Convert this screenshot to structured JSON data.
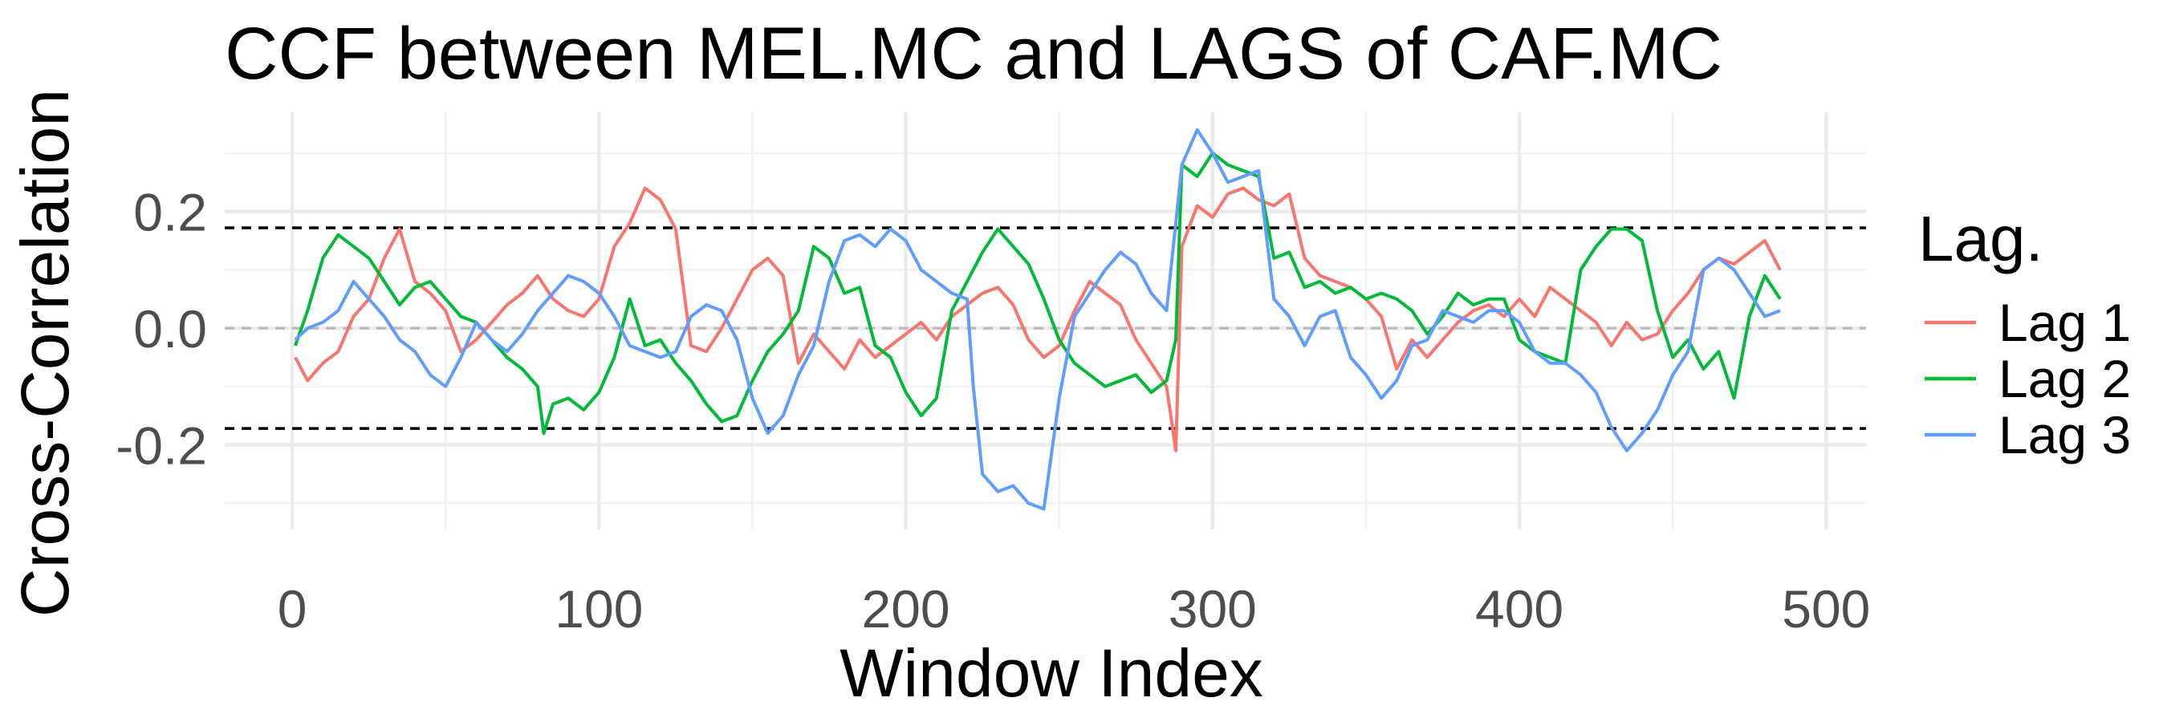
{
  "chart_data": {
    "type": "line",
    "title": "CCF between  MEL.MC and LAGS of CAF.MC",
    "xlabel": "Window Index",
    "ylabel": "Cross-Correlation",
    "xlim": [
      -22,
      513
    ],
    "ylim": [
      -0.345,
      0.37
    ],
    "x_ticks": [
      0,
      100,
      200,
      300,
      400,
      500
    ],
    "y_ticks": [
      -0.2,
      0.0,
      0.2
    ],
    "x_tick_labels": [
      "0",
      "100",
      "200",
      "300",
      "400",
      "500"
    ],
    "y_tick_labels": [
      "-0.2",
      "0.0",
      "0.2"
    ],
    "grid": true,
    "legend_position": "right",
    "legend_title": "Lag.",
    "reference_lines": [
      {
        "y": 0.172,
        "style": "dashed",
        "color": "#000000"
      },
      {
        "y": -0.172,
        "style": "dashed",
        "color": "#000000"
      },
      {
        "y": 0.0,
        "style": "dashed",
        "color": "#bebebe"
      }
    ],
    "series": [
      {
        "name": "Lag 1",
        "color": "#F8766D",
        "x": [
          1,
          5,
          10,
          15,
          20,
          25,
          30,
          35,
          40,
          45,
          50,
          55,
          60,
          65,
          70,
          75,
          80,
          85,
          90,
          95,
          100,
          105,
          110,
          115,
          120,
          125,
          130,
          135,
          140,
          145,
          150,
          155,
          160,
          165,
          170,
          175,
          180,
          185,
          190,
          195,
          200,
          205,
          210,
          215,
          220,
          225,
          230,
          235,
          240,
          245,
          250,
          255,
          260,
          265,
          270,
          275,
          280,
          285,
          288,
          290,
          295,
          300,
          305,
          310,
          315,
          320,
          325,
          330,
          335,
          340,
          345,
          350,
          355,
          360,
          365,
          370,
          375,
          380,
          385,
          390,
          395,
          400,
          405,
          410,
          415,
          420,
          425,
          430,
          435,
          440,
          445,
          450,
          455,
          460,
          465,
          470,
          475,
          480,
          485
        ],
        "y": [
          -0.05,
          -0.09,
          -0.06,
          -0.04,
          0.02,
          0.05,
          0.12,
          0.17,
          0.08,
          0.06,
          0.03,
          -0.04,
          -0.02,
          0.01,
          0.04,
          0.06,
          0.09,
          0.05,
          0.03,
          0.02,
          0.05,
          0.14,
          0.18,
          0.24,
          0.22,
          0.17,
          -0.03,
          -0.04,
          0.0,
          0.05,
          0.1,
          0.12,
          0.09,
          -0.06,
          -0.01,
          -0.04,
          -0.07,
          -0.02,
          -0.05,
          -0.03,
          -0.01,
          0.01,
          -0.02,
          0.02,
          0.04,
          0.06,
          0.07,
          0.04,
          -0.02,
          -0.05,
          -0.03,
          0.03,
          0.08,
          0.06,
          0.04,
          -0.02,
          -0.06,
          -0.1,
          -0.21,
          0.14,
          0.21,
          0.19,
          0.23,
          0.24,
          0.22,
          0.21,
          0.23,
          0.12,
          0.09,
          0.08,
          0.07,
          0.05,
          0.02,
          -0.07,
          -0.02,
          -0.05,
          -0.02,
          0.01,
          0.03,
          0.04,
          0.02,
          0.05,
          0.02,
          0.07,
          0.05,
          0.03,
          0.01,
          -0.03,
          0.01,
          -0.02,
          -0.01,
          0.03,
          0.06,
          0.1,
          0.12,
          0.11,
          0.13,
          0.15,
          0.1
        ]
      },
      {
        "name": "Lag 2",
        "color": "#00BA38",
        "x": [
          1,
          5,
          10,
          15,
          20,
          25,
          30,
          35,
          40,
          45,
          50,
          55,
          60,
          65,
          70,
          75,
          80,
          82,
          85,
          90,
          95,
          100,
          105,
          110,
          115,
          120,
          125,
          130,
          135,
          140,
          145,
          150,
          155,
          160,
          165,
          170,
          175,
          180,
          185,
          190,
          195,
          200,
          205,
          210,
          215,
          220,
          225,
          230,
          235,
          240,
          245,
          250,
          255,
          260,
          265,
          270,
          275,
          280,
          285,
          288,
          290,
          295,
          300,
          305,
          310,
          315,
          320,
          325,
          330,
          335,
          340,
          345,
          350,
          355,
          360,
          365,
          370,
          375,
          380,
          385,
          390,
          395,
          400,
          405,
          410,
          415,
          420,
          425,
          430,
          435,
          440,
          445,
          450,
          455,
          460,
          465,
          470,
          475,
          480,
          485
        ],
        "y": [
          -0.03,
          0.03,
          0.12,
          0.16,
          0.14,
          0.12,
          0.08,
          0.04,
          0.07,
          0.08,
          0.05,
          0.02,
          0.01,
          -0.02,
          -0.05,
          -0.07,
          -0.1,
          -0.18,
          -0.13,
          -0.12,
          -0.14,
          -0.11,
          -0.05,
          0.05,
          -0.03,
          -0.02,
          -0.06,
          -0.09,
          -0.13,
          -0.16,
          -0.15,
          -0.09,
          -0.04,
          -0.01,
          0.03,
          0.14,
          0.12,
          0.06,
          0.07,
          -0.03,
          -0.05,
          -0.11,
          -0.15,
          -0.12,
          0.03,
          0.08,
          0.13,
          0.17,
          0.14,
          0.11,
          0.05,
          -0.02,
          -0.06,
          -0.08,
          -0.1,
          -0.09,
          -0.08,
          -0.11,
          -0.09,
          -0.02,
          0.28,
          0.26,
          0.3,
          0.28,
          0.27,
          0.26,
          0.12,
          0.13,
          0.07,
          0.08,
          0.06,
          0.07,
          0.05,
          0.06,
          0.05,
          0.03,
          -0.01,
          0.02,
          0.06,
          0.04,
          0.05,
          0.05,
          -0.02,
          -0.04,
          -0.05,
          -0.06,
          0.1,
          0.14,
          0.17,
          0.17,
          0.15,
          0.03,
          -0.05,
          -0.02,
          -0.07,
          -0.04,
          -0.12,
          0.02,
          0.09,
          0.05
        ]
      },
      {
        "name": "Lag 3",
        "color": "#619CFF",
        "x": [
          1,
          5,
          10,
          15,
          20,
          25,
          30,
          35,
          40,
          45,
          50,
          55,
          60,
          65,
          70,
          75,
          80,
          85,
          90,
          95,
          100,
          105,
          110,
          115,
          120,
          125,
          130,
          135,
          140,
          145,
          150,
          155,
          160,
          165,
          170,
          175,
          180,
          185,
          190,
          195,
          200,
          205,
          210,
          215,
          220,
          222,
          225,
          230,
          235,
          240,
          245,
          250,
          255,
          260,
          265,
          270,
          275,
          280,
          285,
          290,
          295,
          300,
          305,
          310,
          315,
          320,
          325,
          330,
          335,
          340,
          345,
          350,
          355,
          360,
          365,
          370,
          375,
          380,
          385,
          390,
          395,
          400,
          405,
          410,
          415,
          420,
          425,
          430,
          435,
          440,
          445,
          450,
          455,
          460,
          465,
          470,
          475,
          480,
          485
        ],
        "y": [
          -0.02,
          0.0,
          0.01,
          0.03,
          0.08,
          0.05,
          0.02,
          -0.02,
          -0.04,
          -0.08,
          -0.1,
          -0.05,
          0.01,
          -0.02,
          -0.04,
          -0.01,
          0.03,
          0.06,
          0.09,
          0.08,
          0.06,
          0.02,
          -0.03,
          -0.04,
          -0.05,
          -0.04,
          0.02,
          0.04,
          0.03,
          -0.02,
          -0.12,
          -0.18,
          -0.15,
          -0.08,
          -0.03,
          0.08,
          0.15,
          0.16,
          0.14,
          0.17,
          0.15,
          0.1,
          0.08,
          0.06,
          0.05,
          -0.1,
          -0.25,
          -0.28,
          -0.27,
          -0.3,
          -0.31,
          -0.12,
          0.02,
          0.06,
          0.1,
          0.13,
          0.11,
          0.06,
          0.03,
          0.28,
          0.34,
          0.3,
          0.25,
          0.26,
          0.27,
          0.05,
          0.02,
          -0.03,
          0.02,
          0.03,
          -0.05,
          -0.08,
          -0.12,
          -0.09,
          -0.03,
          -0.02,
          0.03,
          0.02,
          0.01,
          0.03,
          0.03,
          0.01,
          -0.04,
          -0.06,
          -0.06,
          -0.08,
          -0.11,
          -0.17,
          -0.21,
          -0.18,
          -0.14,
          -0.08,
          -0.04,
          0.1,
          0.12,
          0.1,
          0.06,
          0.02,
          0.03
        ]
      }
    ]
  }
}
